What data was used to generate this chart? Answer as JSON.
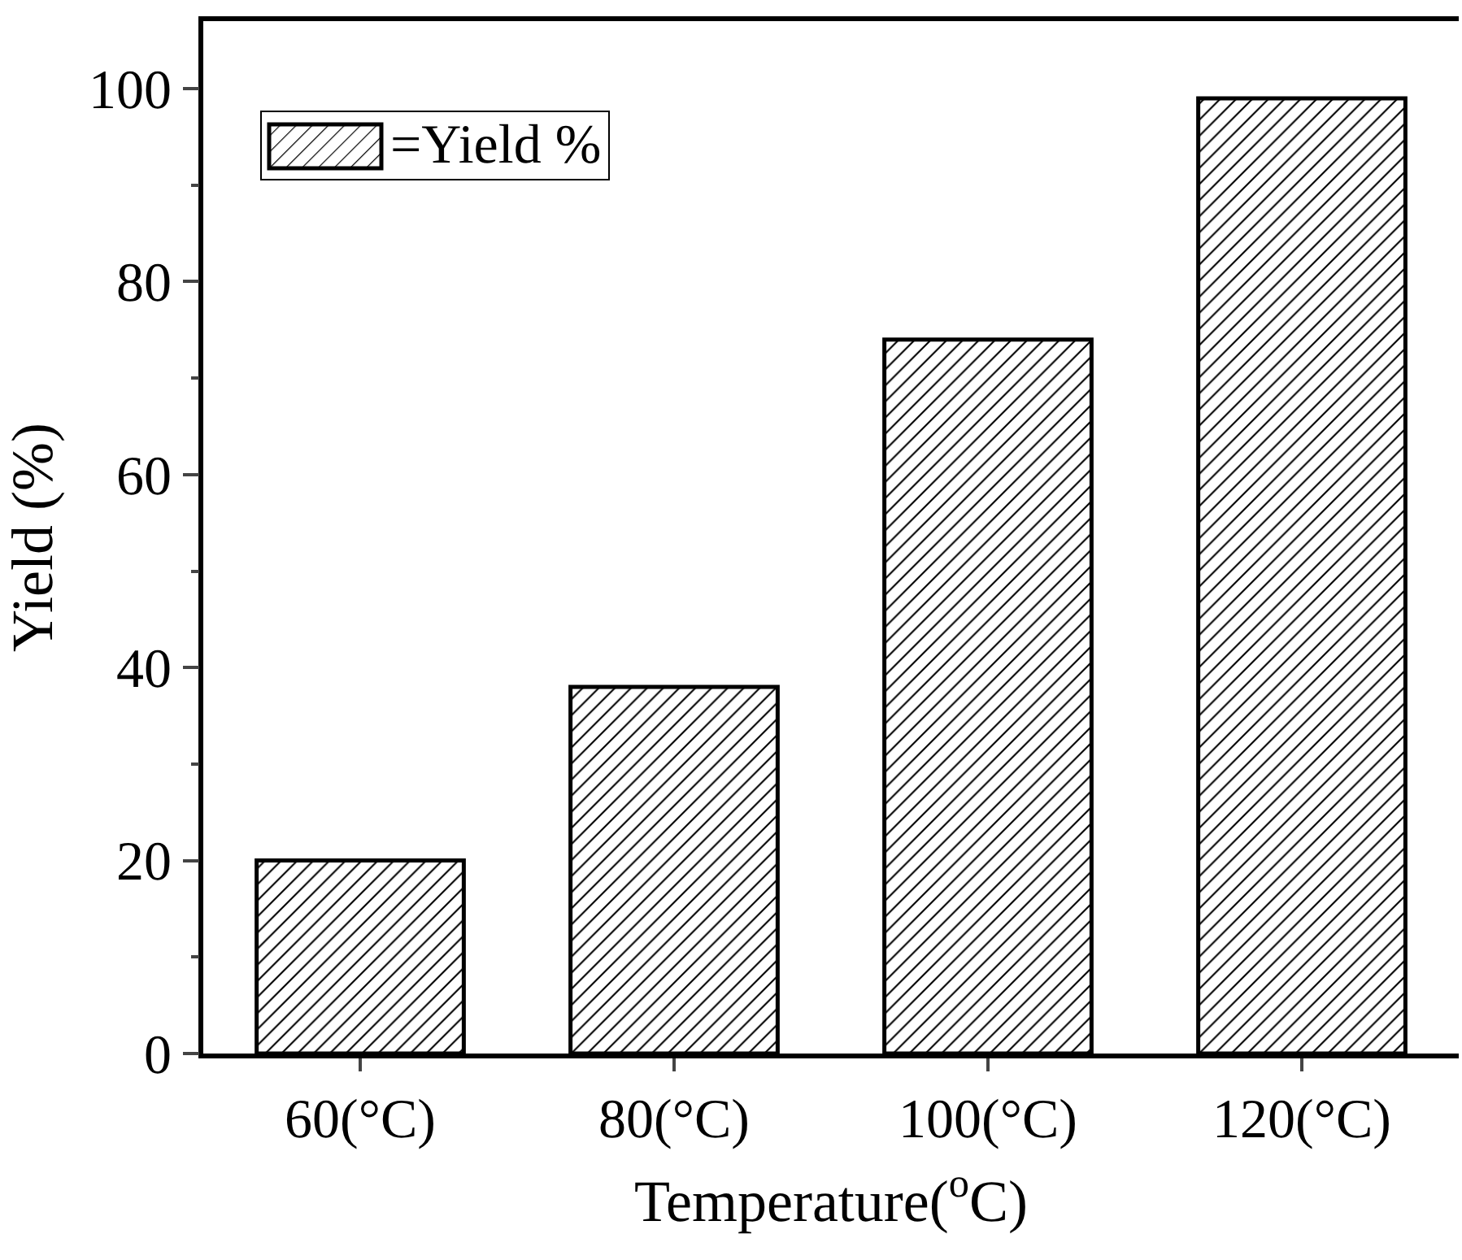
{
  "chart_data": {
    "type": "bar",
    "xlabel": "Temperature($^{o}$C)",
    "ylabel": "Yield (%)",
    "categories": [
      "60(°C)",
      "80(°C)",
      "100(°C)",
      "120(°C)"
    ],
    "series": [
      {
        "name": "=Yield %",
        "color": "#000000",
        "values": [
          20,
          38,
          74,
          99
        ]
      }
    ],
    "ylim": [
      0,
      107
    ],
    "yticks": [
      0,
      20,
      40,
      60,
      80,
      100
    ],
    "grid": false,
    "legend": "top left"
  }
}
